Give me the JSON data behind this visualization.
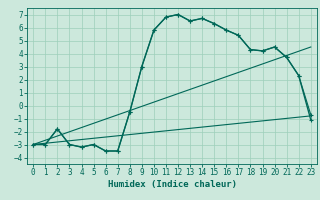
{
  "bg_color": "#cce8dc",
  "grid_color": "#9ecfba",
  "line_color": "#006858",
  "xlabel": "Humidex (Indice chaleur)",
  "xlim": [
    -0.5,
    23.5
  ],
  "ylim": [
    -4.5,
    7.5
  ],
  "xticks": [
    0,
    1,
    2,
    3,
    4,
    5,
    6,
    7,
    8,
    9,
    10,
    11,
    12,
    13,
    14,
    15,
    16,
    17,
    18,
    19,
    20,
    21,
    22,
    23
  ],
  "yticks": [
    -4,
    -3,
    -2,
    -1,
    0,
    1,
    2,
    3,
    4,
    5,
    6,
    7
  ],
  "line1_x": [
    0,
    1,
    2,
    3,
    4,
    5,
    6,
    7,
    8,
    9,
    10,
    11,
    12,
    13,
    14,
    15,
    16,
    17,
    18,
    19,
    20,
    21,
    22,
    23
  ],
  "line1_y": [
    -3,
    -3,
    -1.8,
    -3,
    -3.2,
    -3,
    -3.5,
    -3.5,
    -0.5,
    3.0,
    5.8,
    6.8,
    7.0,
    6.5,
    6.7,
    6.3,
    5.8,
    5.4,
    4.3,
    4.2,
    4.5,
    3.7,
    2.3,
    -1.1
  ],
  "line2_x": [
    0,
    1,
    2,
    3,
    4,
    5,
    6,
    7,
    8,
    9,
    10,
    11,
    12,
    13,
    14,
    15,
    16,
    17,
    18,
    19,
    20,
    21,
    22,
    23
  ],
  "line2_y": [
    -3,
    -3,
    -1.8,
    -3,
    -3.2,
    -3,
    -3.5,
    -3.5,
    -0.5,
    3.0,
    5.8,
    6.8,
    7.0,
    6.5,
    6.7,
    6.3,
    5.8,
    5.4,
    4.3,
    4.2,
    4.5,
    3.7,
    2.3,
    -0.7
  ],
  "line3_x": [
    0,
    23
  ],
  "line3_y": [
    -3.0,
    -0.8
  ],
  "line4_x": [
    0,
    23
  ],
  "line4_y": [
    -3.0,
    4.5
  ],
  "tick_fontsize": 5.5,
  "label_fontsize": 6.5
}
